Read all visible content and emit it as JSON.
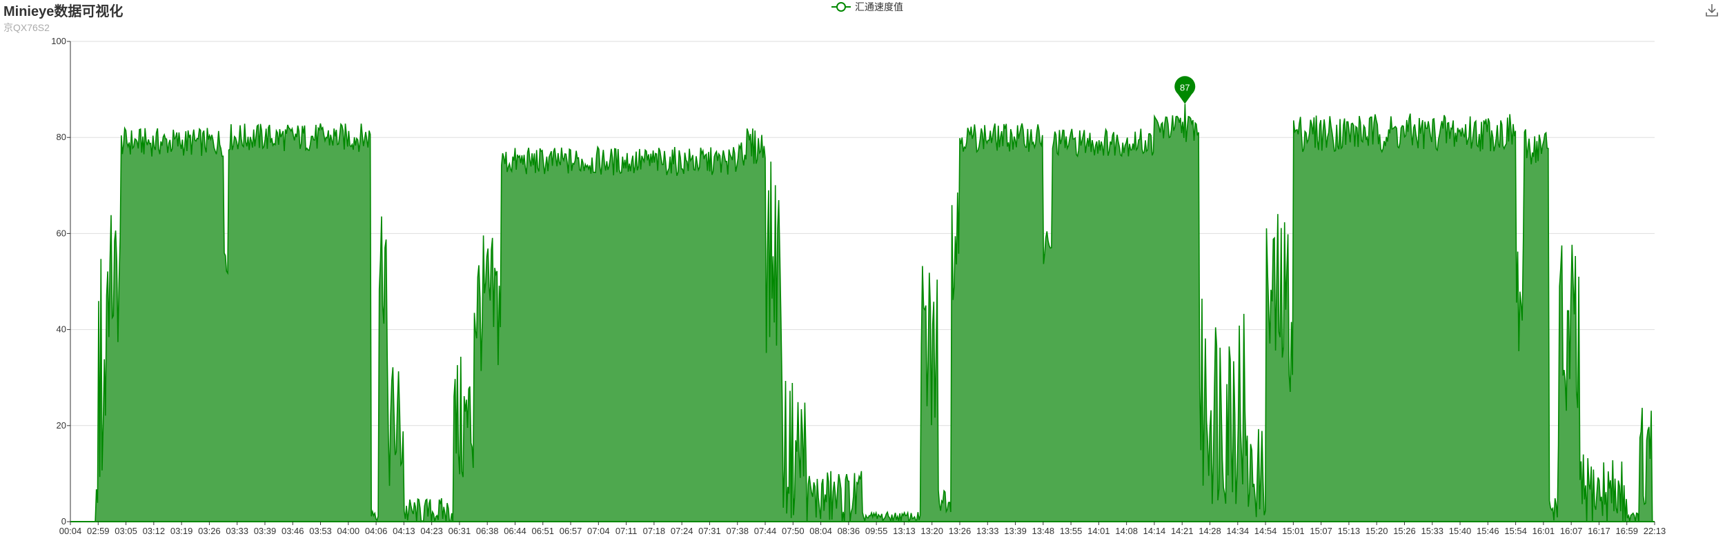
{
  "chart_data": {
    "type": "area",
    "title": "Minieye数据可视化",
    "subtitle": "京QX76S2",
    "legend": [
      "汇通速度值"
    ],
    "legend_position": "top-center",
    "series_color": "#008800",
    "area_color": "#4ea84e",
    "ylim": [
      0,
      100
    ],
    "yticks": [
      0,
      20,
      40,
      60,
      80,
      100
    ],
    "grid": true,
    "x_tick_labels": [
      "00:04",
      "02:59",
      "03:05",
      "03:12",
      "03:19",
      "03:26",
      "03:33",
      "03:39",
      "03:46",
      "03:53",
      "04:00",
      "04:06",
      "04:13",
      "04:23",
      "06:31",
      "06:38",
      "06:44",
      "06:51",
      "06:57",
      "07:04",
      "07:11",
      "07:18",
      "07:24",
      "07:31",
      "07:38",
      "07:44",
      "07:50",
      "08:04",
      "08:36",
      "09:55",
      "13:13",
      "13:20",
      "13:26",
      "13:33",
      "13:39",
      "13:48",
      "13:55",
      "14:01",
      "14:08",
      "14:14",
      "14:21",
      "14:28",
      "14:34",
      "14:54",
      "15:01",
      "15:07",
      "15:13",
      "15:20",
      "15:26",
      "15:33",
      "15:40",
      "15:46",
      "15:54",
      "16:01",
      "16:07",
      "16:17",
      "16:59",
      "22:13"
    ],
    "max_marker": {
      "value": 87,
      "label": "87",
      "x_index": 40.1
    },
    "segments": [
      {
        "start": 0.0,
        "end": 0.9,
        "level": 0,
        "amp": 0
      },
      {
        "start": 0.9,
        "end": 1.0,
        "level": 5,
        "amp": 2
      },
      {
        "start": 1.0,
        "end": 1.3,
        "level": 30,
        "amp": 30
      },
      {
        "start": 1.3,
        "end": 1.8,
        "level": 50,
        "amp": 15
      },
      {
        "start": 1.8,
        "end": 5.5,
        "level": 79,
        "amp": 3
      },
      {
        "start": 5.5,
        "end": 5.7,
        "level": 55,
        "amp": 10
      },
      {
        "start": 5.7,
        "end": 10.8,
        "level": 80,
        "amp": 3
      },
      {
        "start": 10.8,
        "end": 11.1,
        "level": 2,
        "amp": 2
      },
      {
        "start": 11.1,
        "end": 11.4,
        "level": 55,
        "amp": 15
      },
      {
        "start": 11.4,
        "end": 12.0,
        "level": 20,
        "amp": 15
      },
      {
        "start": 12.0,
        "end": 13.8,
        "level": 2,
        "amp": 3
      },
      {
        "start": 13.8,
        "end": 14.5,
        "level": 20,
        "amp": 15
      },
      {
        "start": 14.5,
        "end": 15.5,
        "level": 45,
        "amp": 15
      },
      {
        "start": 15.5,
        "end": 24.0,
        "level": 75,
        "amp": 3
      },
      {
        "start": 24.0,
        "end": 25.0,
        "level": 78,
        "amp": 4
      },
      {
        "start": 25.0,
        "end": 25.6,
        "level": 55,
        "amp": 20
      },
      {
        "start": 25.6,
        "end": 26.5,
        "level": 15,
        "amp": 15
      },
      {
        "start": 26.5,
        "end": 28.5,
        "level": 5,
        "amp": 6
      },
      {
        "start": 28.5,
        "end": 30.6,
        "level": 1,
        "amp": 1
      },
      {
        "start": 30.6,
        "end": 31.2,
        "level": 35,
        "amp": 20
      },
      {
        "start": 31.2,
        "end": 31.7,
        "level": 5,
        "amp": 3
      },
      {
        "start": 31.7,
        "end": 32.0,
        "level": 60,
        "amp": 15
      },
      {
        "start": 32.0,
        "end": 35.0,
        "level": 80,
        "amp": 3
      },
      {
        "start": 35.0,
        "end": 35.3,
        "level": 55,
        "amp": 8
      },
      {
        "start": 35.3,
        "end": 39.0,
        "level": 79,
        "amp": 3
      },
      {
        "start": 39.0,
        "end": 40.6,
        "level": 82,
        "amp": 3
      },
      {
        "start": 40.6,
        "end": 42.3,
        "level": 25,
        "amp": 22
      },
      {
        "start": 42.3,
        "end": 43.0,
        "level": 10,
        "amp": 10
      },
      {
        "start": 43.0,
        "end": 44.0,
        "level": 45,
        "amp": 20
      },
      {
        "start": 44.0,
        "end": 52.0,
        "level": 81,
        "amp": 4
      },
      {
        "start": 52.0,
        "end": 52.3,
        "level": 45,
        "amp": 15
      },
      {
        "start": 52.3,
        "end": 53.2,
        "level": 78,
        "amp": 4
      },
      {
        "start": 53.2,
        "end": 53.5,
        "level": 3,
        "amp": 3
      },
      {
        "start": 53.5,
        "end": 54.3,
        "level": 35,
        "amp": 25
      },
      {
        "start": 54.3,
        "end": 56.0,
        "level": 6,
        "amp": 8
      },
      {
        "start": 56.0,
        "end": 56.4,
        "level": 1,
        "amp": 1
      },
      {
        "start": 56.4,
        "end": 56.9,
        "level": 10,
        "amp": 15
      },
      {
        "start": 56.9,
        "end": 57.0,
        "level": 0,
        "amp": 0
      }
    ]
  }
}
